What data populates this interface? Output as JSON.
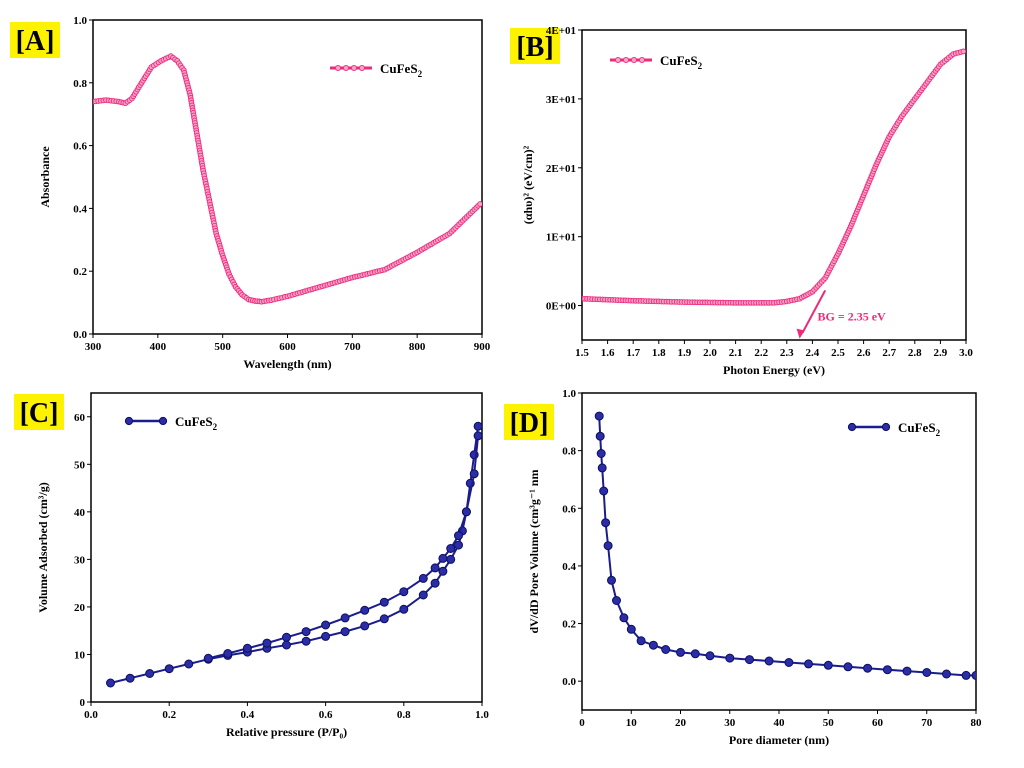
{
  "chart_data": [
    {
      "panel": "[A]",
      "type": "line",
      "xlabel": "Wavelength (nm)",
      "ylabel": "Absorbance",
      "xlim": [
        300,
        900
      ],
      "ylim": [
        0.0,
        1.0
      ],
      "xticks": [
        "300",
        "400",
        "500",
        "600",
        "700",
        "800",
        "900"
      ],
      "yticks": [
        "0.0",
        "0.2",
        "0.4",
        "0.6",
        "0.8",
        "1.0"
      ],
      "legend": "top-right",
      "color": "#ee2a7b",
      "series": [
        {
          "name": "CuFeS2",
          "x": [
            300,
            320,
            340,
            350,
            360,
            375,
            390,
            405,
            420,
            430,
            440,
            450,
            460,
            470,
            480,
            490,
            500,
            510,
            520,
            530,
            540,
            550,
            560,
            575,
            600,
            650,
            700,
            750,
            800,
            850,
            900
          ],
          "y": [
            0.74,
            0.745,
            0.74,
            0.735,
            0.75,
            0.8,
            0.85,
            0.87,
            0.885,
            0.87,
            0.84,
            0.76,
            0.64,
            0.52,
            0.42,
            0.32,
            0.25,
            0.19,
            0.15,
            0.125,
            0.11,
            0.105,
            0.103,
            0.108,
            0.12,
            0.15,
            0.18,
            0.205,
            0.26,
            0.32,
            0.42
          ]
        }
      ]
    },
    {
      "panel": "[B]",
      "type": "line",
      "xlabel": "Photon Energy (eV)",
      "ylabel": "(αhυ)² (eV/cm)²",
      "xlim": [
        1.5,
        3.0
      ],
      "ylim": [
        -5,
        40
      ],
      "xticks": [
        "1.5",
        "1.6",
        "1.7",
        "1.8",
        "1.9",
        "2.0",
        "2.1",
        "2.2",
        "2.3",
        "2.4",
        "2.5",
        "2.6",
        "2.7",
        "2.8",
        "2.9",
        "3.0"
      ],
      "yticks": [
        "0E+00",
        "1E+01",
        "2E+01",
        "3E+01",
        "4E+01"
      ],
      "legend": "top-left",
      "color": "#ee2a7b",
      "annotation": "BG = 2.35 eV",
      "bandgap_ev": 2.35,
      "series": [
        {
          "name": "CuFeS2",
          "x": [
            1.5,
            1.7,
            1.9,
            2.1,
            2.25,
            2.3,
            2.35,
            2.4,
            2.45,
            2.5,
            2.55,
            2.6,
            2.65,
            2.7,
            2.75,
            2.8,
            2.85,
            2.9,
            2.95,
            3.0
          ],
          "y": [
            1.0,
            0.7,
            0.5,
            0.4,
            0.4,
            0.6,
            1.0,
            2.0,
            4.0,
            7.5,
            11.5,
            16.0,
            20.5,
            24.5,
            27.5,
            30.0,
            32.5,
            35.0,
            36.5,
            37.0
          ]
        }
      ]
    },
    {
      "panel": "[C]",
      "type": "line",
      "xlabel": "Relative pressure (P/P₀)",
      "ylabel": "Volume Adsorbed (cm³/g)",
      "xlim": [
        0.0,
        1.0
      ],
      "ylim": [
        0,
        65
      ],
      "xticks": [
        "0.0",
        "0.2",
        "0.4",
        "0.6",
        "0.8",
        "1.0"
      ],
      "yticks": [
        "0",
        "10",
        "20",
        "30",
        "40",
        "50",
        "60"
      ],
      "legend": "top-left",
      "color": "#1b1d8c",
      "series": [
        {
          "x": [
            0.05,
            0.1,
            0.15,
            0.2,
            0.25,
            0.3,
            0.35,
            0.4,
            0.45,
            0.5,
            0.55,
            0.6,
            0.65,
            0.7,
            0.75,
            0.8,
            0.85,
            0.88,
            0.9,
            0.92,
            0.94,
            0.95,
            0.96,
            0.97,
            0.98,
            0.99
          ],
          "y": [
            4,
            5,
            6,
            7,
            8,
            9,
            9.8,
            10.5,
            11.3,
            12,
            12.8,
            13.8,
            14.8,
            16,
            17.5,
            19.5,
            22.5,
            25,
            27.5,
            30,
            33,
            36,
            40,
            46,
            52,
            58
          ]
        },
        {
          "x": [
            0.3,
            0.35,
            0.4,
            0.45,
            0.5,
            0.55,
            0.6,
            0.65,
            0.7,
            0.75,
            0.8,
            0.85,
            0.88,
            0.9,
            0.92,
            0.94,
            0.96,
            0.98,
            0.99
          ],
          "y": [
            9.2,
            10.2,
            11.3,
            12.4,
            13.6,
            14.8,
            16.2,
            17.7,
            19.3,
            21,
            23.2,
            26,
            28.2,
            30.2,
            32.3,
            35,
            40,
            48,
            56
          ]
        }
      ]
    },
    {
      "panel": "[D]",
      "type": "line",
      "xlabel": "Pore diameter (nm)",
      "ylabel": "dV/dD Pore Volume (cm³g⁻¹ nm",
      "xlim": [
        0,
        80
      ],
      "ylim": [
        -0.1,
        1.0
      ],
      "xticks": [
        "0",
        "10",
        "20",
        "30",
        "40",
        "50",
        "60",
        "70",
        "80"
      ],
      "yticks": [
        "0.0",
        "0.2",
        "0.4",
        "0.6",
        "0.8",
        "1.0"
      ],
      "legend": "top-right",
      "color": "#1b1d8c",
      "series": [
        {
          "name": "CuFeS2",
          "x": [
            3.5,
            3.7,
            3.9,
            4.1,
            4.4,
            4.8,
            5.3,
            6,
            7,
            8.5,
            10,
            12,
            14.5,
            17,
            20,
            23,
            26,
            30,
            34,
            38,
            42,
            46,
            50,
            54,
            58,
            62,
            66,
            70,
            74,
            78,
            80
          ],
          "y": [
            0.92,
            0.85,
            0.79,
            0.74,
            0.66,
            0.55,
            0.47,
            0.35,
            0.28,
            0.22,
            0.18,
            0.14,
            0.125,
            0.11,
            0.1,
            0.095,
            0.088,
            0.08,
            0.075,
            0.07,
            0.065,
            0.06,
            0.055,
            0.05,
            0.045,
            0.04,
            0.035,
            0.03,
            0.025,
            0.02,
            0.02
          ]
        }
      ]
    }
  ],
  "legend_label": {
    "base": "CuFeS",
    "sub": "2"
  }
}
